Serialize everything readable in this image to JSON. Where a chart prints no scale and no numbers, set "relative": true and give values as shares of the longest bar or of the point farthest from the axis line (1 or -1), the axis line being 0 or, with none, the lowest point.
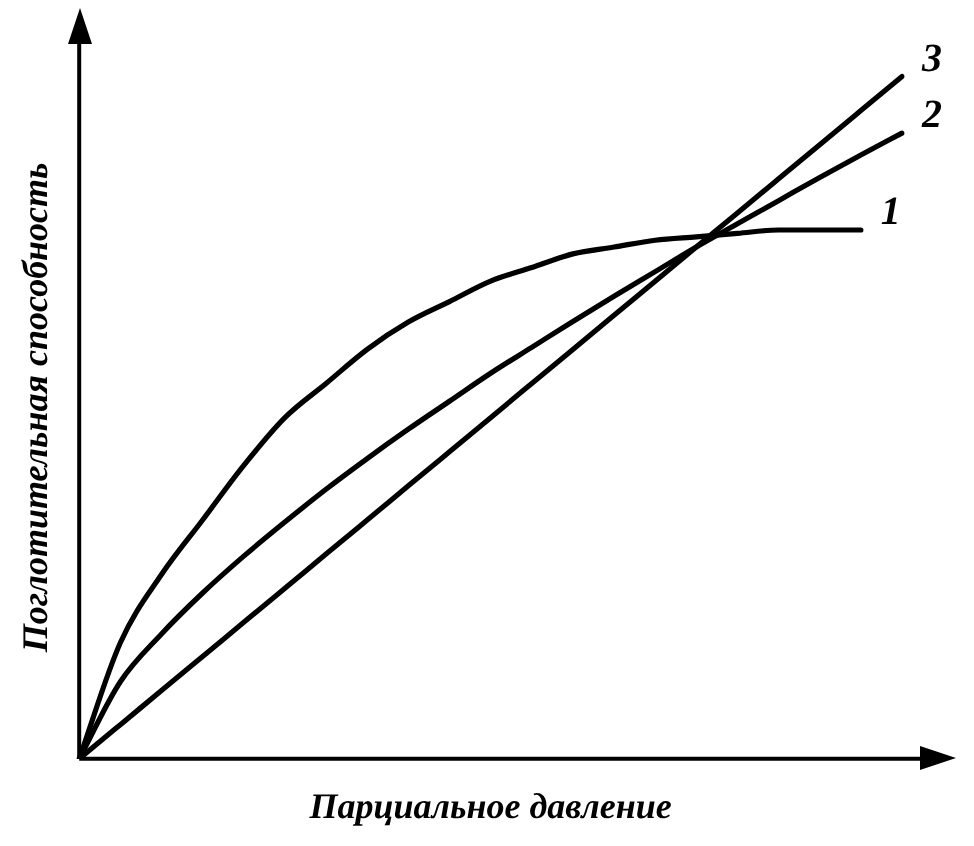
{
  "chart_data": {
    "type": "line",
    "relative": true,
    "xlabel": "Парциальное давление",
    "ylabel": "Поглотительная способность",
    "categories": [
      null,
      null,
      null,
      null,
      null,
      null,
      null,
      null,
      null,
      null,
      null,
      null,
      null,
      null,
      null,
      null,
      null,
      null,
      null,
      null,
      null
    ],
    "legend": false,
    "grid": false,
    "marker": "none",
    "line_style": "solid",
    "series": [
      {
        "name": "1",
        "color": "#000000",
        "values": [
          0,
          0.17,
          0.27,
          0.35,
          0.43,
          0.5,
          0.55,
          0.6,
          0.64,
          0.67,
          0.7,
          0.72,
          0.74,
          0.75,
          0.76,
          0.765,
          0.77,
          0.775,
          0.775,
          0.775,
          null
        ]
      },
      {
        "name": "2",
        "color": "#000000",
        "values": [
          0,
          0.113,
          0.183,
          0.243,
          0.297,
          0.347,
          0.395,
          0.44,
          0.483,
          0.524,
          0.565,
          0.603,
          0.641,
          0.678,
          0.714,
          0.75,
          0.784,
          0.818,
          0.852,
          0.885,
          0.917
        ]
      },
      {
        "name": "3",
        "color": "#000000",
        "values": [
          0,
          0.05,
          0.1,
          0.15,
          0.2,
          0.25,
          0.3,
          0.35,
          0.4,
          0.45,
          0.5,
          0.55,
          0.6,
          0.65,
          0.7,
          0.75,
          0.8,
          0.85,
          0.9,
          0.95,
          1
        ]
      }
    ]
  }
}
